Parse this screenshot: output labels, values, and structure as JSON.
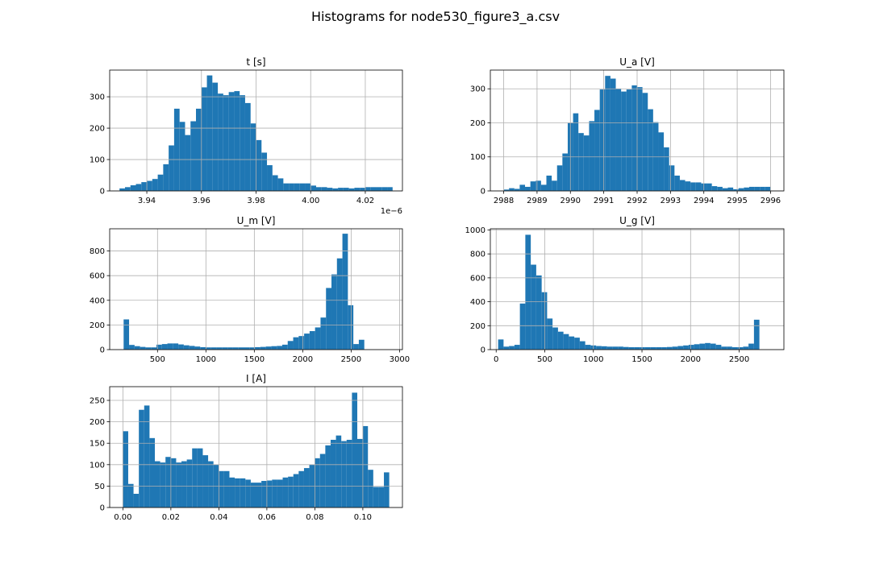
{
  "figure": {
    "title": "Histograms for node530_figure3_a.csv"
  },
  "chart_data": [
    {
      "type": "bar",
      "title": "t [s]",
      "bin_start": 3.93,
      "bin_width": 0.002,
      "values": [
        8,
        12,
        18,
        22,
        28,
        32,
        38,
        52,
        85,
        145,
        262,
        220,
        178,
        222,
        262,
        330,
        368,
        345,
        310,
        305,
        315,
        318,
        305,
        280,
        215,
        162,
        122,
        82,
        50,
        40,
        24,
        24,
        24,
        24,
        24,
        17,
        12,
        12,
        10,
        8,
        10,
        10,
        8,
        10,
        10,
        12,
        12,
        12,
        12,
        12
      ],
      "xlim": [
        3.9264,
        4.0336
      ],
      "ylim": [
        0,
        385
      ],
      "xticks": [
        3.94,
        3.96,
        3.98,
        4.0,
        4.02
      ],
      "xtick_labels": [
        "3.94",
        "3.96",
        "3.98",
        "4.00",
        "4.02"
      ],
      "yticks": [
        0,
        100,
        200,
        300
      ],
      "yticks_labels": [
        "0",
        "100",
        "200",
        "300"
      ],
      "offset_label": "1e−6",
      "grid": true
    },
    {
      "type": "bar",
      "title": "U_a [V]",
      "bin_start": 2988.0,
      "bin_width": 0.16,
      "values": [
        4,
        8,
        6,
        18,
        12,
        28,
        30,
        18,
        45,
        30,
        75,
        110,
        200,
        228,
        170,
        163,
        205,
        238,
        298,
        338,
        330,
        300,
        292,
        298,
        310,
        305,
        288,
        240,
        202,
        172,
        128,
        75,
        45,
        32,
        28,
        25,
        25,
        22,
        22,
        14,
        12,
        8,
        10,
        5,
        8,
        10,
        12,
        12,
        12,
        12
      ],
      "xlim": [
        2987.6,
        2996.4
      ],
      "ylim": [
        0,
        355
      ],
      "xticks": [
        2988,
        2989,
        2990,
        2991,
        2992,
        2993,
        2994,
        2995,
        2996
      ],
      "xtick_labels": [
        "2988",
        "2989",
        "2990",
        "2991",
        "2992",
        "2993",
        "2994",
        "2995",
        "2996"
      ],
      "yticks": [
        0,
        100,
        200,
        300
      ],
      "yticks_labels": [
        "0",
        "100",
        "200",
        "300"
      ],
      "grid": true
    },
    {
      "type": "bar",
      "title": "U_m [V]",
      "bin_start": 150,
      "bin_width": 56.5,
      "values": [
        245,
        38,
        28,
        22,
        18,
        18,
        40,
        45,
        50,
        50,
        42,
        35,
        30,
        25,
        20,
        18,
        18,
        18,
        18,
        18,
        18,
        18,
        18,
        18,
        20,
        22,
        25,
        28,
        30,
        40,
        70,
        100,
        110,
        130,
        150,
        180,
        260,
        500,
        610,
        740,
        940,
        360,
        45,
        80
      ],
      "xlim": [
        6,
        3030
      ],
      "ylim": [
        0,
        980
      ],
      "xticks": [
        500,
        1000,
        1500,
        2000,
        2500,
        3000
      ],
      "xtick_labels": [
        "500",
        "1000",
        "1500",
        "2000",
        "2500",
        "3000"
      ],
      "yticks": [
        0,
        200,
        400,
        600,
        800
      ],
      "yticks_labels": [
        "0",
        "200",
        "400",
        "600",
        "800"
      ],
      "grid": true
    },
    {
      "type": "bar",
      "title": "U_g [V]",
      "bin_start": 20,
      "bin_width": 56,
      "values": [
        85,
        25,
        30,
        40,
        385,
        960,
        710,
        620,
        480,
        260,
        185,
        150,
        130,
        110,
        100,
        70,
        40,
        35,
        30,
        28,
        25,
        25,
        25,
        22,
        20,
        20,
        20,
        20,
        20,
        20,
        20,
        22,
        25,
        30,
        35,
        40,
        45,
        50,
        55,
        50,
        40,
        25,
        25,
        20,
        20,
        25,
        50,
        250
      ],
      "xlim": [
        -60,
        2960
      ],
      "ylim": [
        0,
        1010
      ],
      "xticks": [
        0,
        500,
        1000,
        1500,
        2000,
        2500
      ],
      "xtick_labels": [
        "0",
        "500",
        "1000",
        "1500",
        "2000",
        "2500"
      ],
      "yticks": [
        0,
        200,
        400,
        600,
        800,
        1000
      ],
      "yticks_labels": [
        "0",
        "200",
        "400",
        "600",
        "800",
        "1000"
      ],
      "grid": true
    },
    {
      "type": "bar",
      "title": "I [A]",
      "bin_start": 0.0,
      "bin_width": 0.00222,
      "values": [
        178,
        55,
        32,
        228,
        238,
        162,
        108,
        105,
        118,
        115,
        105,
        108,
        112,
        138,
        138,
        122,
        108,
        100,
        85,
        85,
        70,
        68,
        68,
        65,
        58,
        58,
        62,
        63,
        65,
        65,
        70,
        72,
        78,
        85,
        92,
        100,
        115,
        125,
        145,
        158,
        168,
        155,
        158,
        268,
        160,
        190,
        88,
        48,
        48,
        82
      ],
      "xlim": [
        -0.0055,
        0.1165
      ],
      "ylim": [
        0,
        282
      ],
      "xticks": [
        0.0,
        0.02,
        0.04,
        0.06,
        0.08,
        0.1
      ],
      "xtick_labels": [
        "0.00",
        "0.02",
        "0.04",
        "0.06",
        "0.08",
        "0.10"
      ],
      "yticks": [
        0,
        50,
        100,
        150,
        200,
        250
      ],
      "yticks_labels": [
        "0",
        "50",
        "100",
        "150",
        "200",
        "250"
      ],
      "grid": true
    }
  ]
}
